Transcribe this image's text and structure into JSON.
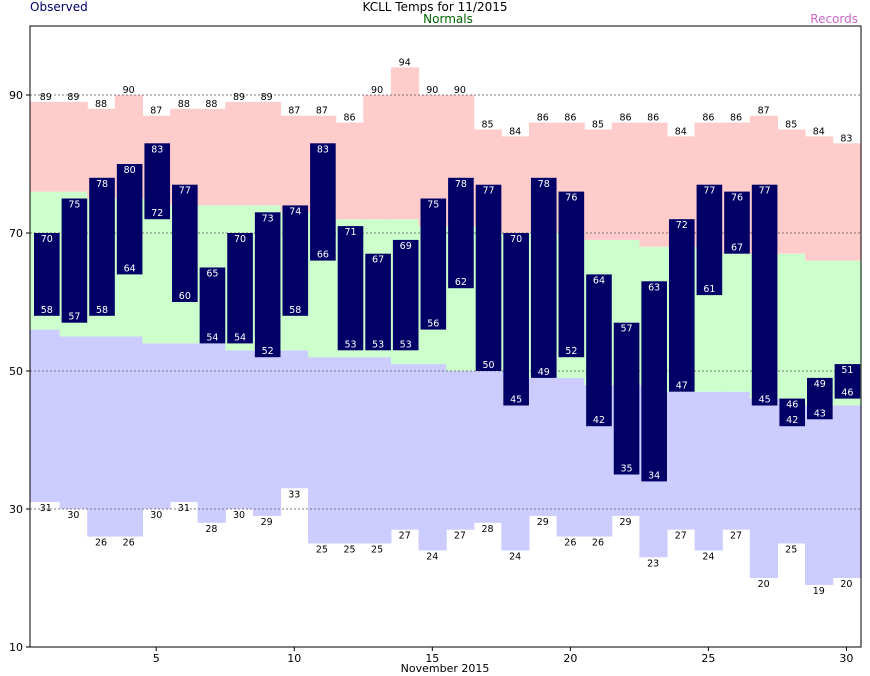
{
  "chart_data": {
    "type": "bar",
    "title": "KCLL Temps for 11/2015",
    "xlabel": "November 2015",
    "legend": {
      "observed": "Observed",
      "normals": "Normals",
      "records": "Records"
    },
    "colors": {
      "observed": "#000066",
      "normals_band": "#ccffcc",
      "record_high_band": "#ffcccc",
      "record_low_band": "#ccccff",
      "normals_text": "#006600",
      "records_text": "#cc66cc",
      "observed_text": "#000066"
    },
    "ylim": [
      10,
      100
    ],
    "yticks": [
      "10",
      "30",
      "50",
      "70",
      "90"
    ],
    "xticks": [
      "5",
      "10",
      "15",
      "20",
      "25",
      "30"
    ],
    "grid": "dashed at y ticks",
    "days": [
      1,
      2,
      3,
      4,
      5,
      6,
      7,
      8,
      9,
      10,
      11,
      12,
      13,
      14,
      15,
      16,
      17,
      18,
      19,
      20,
      21,
      22,
      23,
      24,
      25,
      26,
      27,
      28,
      29,
      30
    ],
    "observed_high": [
      70,
      75,
      78,
      80,
      83,
      77,
      65,
      70,
      73,
      74,
      83,
      71,
      67,
      69,
      75,
      78,
      77,
      70,
      78,
      76,
      64,
      57,
      63,
      72,
      77,
      76,
      77,
      46,
      49,
      51
    ],
    "observed_low": [
      58,
      57,
      58,
      64,
      72,
      60,
      54,
      54,
      52,
      58,
      66,
      53,
      53,
      53,
      56,
      62,
      50,
      45,
      49,
      52,
      42,
      35,
      34,
      47,
      61,
      67,
      45,
      42,
      43,
      46
    ],
    "normal_high": [
      76,
      76,
      75,
      75,
      75,
      74,
      74,
      74,
      74,
      73,
      73,
      72,
      72,
      72,
      71,
      71,
      71,
      70,
      70,
      70,
      69,
      69,
      68,
      68,
      68,
      67,
      67,
      67,
      66,
      66
    ],
    "normal_low": [
      56,
      55,
      55,
      55,
      54,
      54,
      54,
      53,
      53,
      53,
      52,
      52,
      52,
      51,
      51,
      50,
      50,
      50,
      49,
      49,
      48,
      48,
      48,
      47,
      47,
      47,
      46,
      46,
      45,
      45
    ],
    "record_high": [
      89,
      89,
      88,
      90,
      87,
      88,
      88,
      89,
      89,
      87,
      87,
      86,
      90,
      94,
      90,
      90,
      85,
      84,
      86,
      86,
      85,
      86,
      86,
      84,
      86,
      86,
      87,
      85,
      84,
      83
    ],
    "record_low": [
      31,
      30,
      26,
      26,
      30,
      31,
      28,
      30,
      29,
      33,
      25,
      25,
      25,
      27,
      24,
      27,
      28,
      24,
      29,
      26,
      26,
      29,
      23,
      27,
      24,
      27,
      20,
      25,
      19,
      20
    ]
  }
}
